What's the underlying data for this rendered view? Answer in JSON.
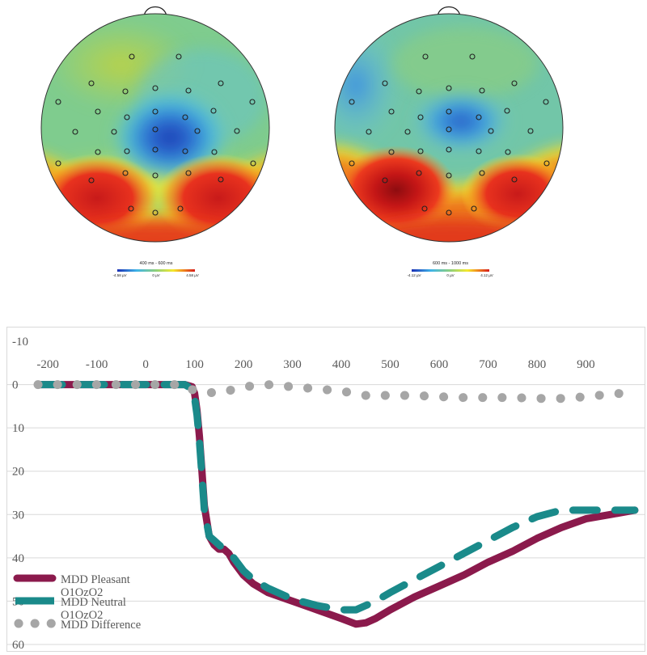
{
  "topomaps": [
    {
      "time_window": "400 ms - 600 ms",
      "scale_min": "-4.58 µV",
      "scale_mid": "0 µV",
      "scale_max": "4.58 µV"
    },
    {
      "time_window": "600 ms - 1000 ms",
      "scale_min": "-4.12 µV",
      "scale_mid": "0 µV",
      "scale_max": "4.12 µV"
    }
  ],
  "colors": {
    "pleasant": "#8b1a4c",
    "neutral": "#1a8a8a",
    "difference": "#a6a6a6",
    "grid": "#d9d9d9",
    "axis_text": "#595959"
  },
  "chart_data": {
    "type": "line",
    "x_axis_position": "top",
    "y_inverted": true,
    "xlim": [
      -230,
      1020
    ],
    "ylim": [
      -10,
      60
    ],
    "x_ticks": [
      -200,
      -100,
      0,
      100,
      200,
      300,
      400,
      500,
      600,
      700,
      800,
      900
    ],
    "x_tick_labels": [
      "-200",
      "-100",
      "0",
      "100",
      "200",
      "300",
      "400",
      "500",
      "600",
      "700",
      "800",
      "900"
    ],
    "y_ticks": [
      -10,
      0,
      10,
      20,
      30,
      40,
      50,
      60
    ],
    "y_tick_labels": [
      "-10",
      "0",
      "10",
      "20",
      "30",
      "40",
      "50",
      "60"
    ],
    "grid": true,
    "legend_position": "bottom-left",
    "series": [
      {
        "name": "MDD Pleasant O1OzO2",
        "style": "solid",
        "x": [
          -220,
          -150,
          -100,
          -50,
          0,
          50,
          80,
          95,
          100,
          105,
          110,
          115,
          120,
          130,
          140,
          150,
          160,
          170,
          180,
          200,
          220,
          250,
          300,
          350,
          400,
          430,
          450,
          470,
          500,
          550,
          600,
          650,
          700,
          750,
          800,
          850,
          900,
          950,
          1000
        ],
        "y": [
          0,
          0,
          0,
          0,
          0,
          0,
          0,
          0.5,
          2,
          6,
          12,
          20,
          28,
          35,
          37,
          38,
          38,
          39,
          41,
          44,
          46,
          48,
          50,
          52,
          54,
          55.3,
          55,
          54,
          52,
          49,
          46.5,
          44,
          41,
          38.5,
          35.5,
          33,
          31,
          30,
          29
        ]
      },
      {
        "name": "MDD Neutral O1OzO2",
        "style": "dashed",
        "x": [
          -220,
          -150,
          -100,
          -50,
          0,
          50,
          80,
          95,
          100,
          105,
          110,
          115,
          120,
          130,
          140,
          150,
          160,
          170,
          180,
          200,
          220,
          250,
          300,
          350,
          400,
          430,
          450,
          470,
          500,
          550,
          600,
          650,
          700,
          750,
          800,
          850,
          900,
          950,
          1000
        ],
        "y": [
          0,
          0,
          0,
          0,
          0,
          0,
          0,
          1,
          3,
          7,
          13,
          21,
          29,
          35,
          36,
          37,
          38,
          39,
          40,
          43,
          45,
          47,
          49.5,
          51,
          52,
          52,
          51,
          50,
          48,
          45,
          42,
          39,
          36,
          33,
          30.5,
          29,
          29,
          29,
          29
        ]
      },
      {
        "name": "MDD Difference",
        "style": "dotted",
        "x": [
          -220,
          -150,
          -100,
          -50,
          0,
          50,
          80,
          100,
          150,
          200,
          250,
          300,
          350,
          400,
          450,
          500,
          550,
          600,
          650,
          700,
          750,
          800,
          850,
          900,
          950,
          1000
        ],
        "y": [
          0,
          0,
          0,
          0,
          0,
          0,
          0,
          1.5,
          2,
          0.5,
          0,
          0.5,
          1,
          1.5,
          2.5,
          2.5,
          2.5,
          2.8,
          3,
          3,
          3,
          3.2,
          3.2,
          2.8,
          2.2,
          1.8
        ]
      }
    ]
  }
}
